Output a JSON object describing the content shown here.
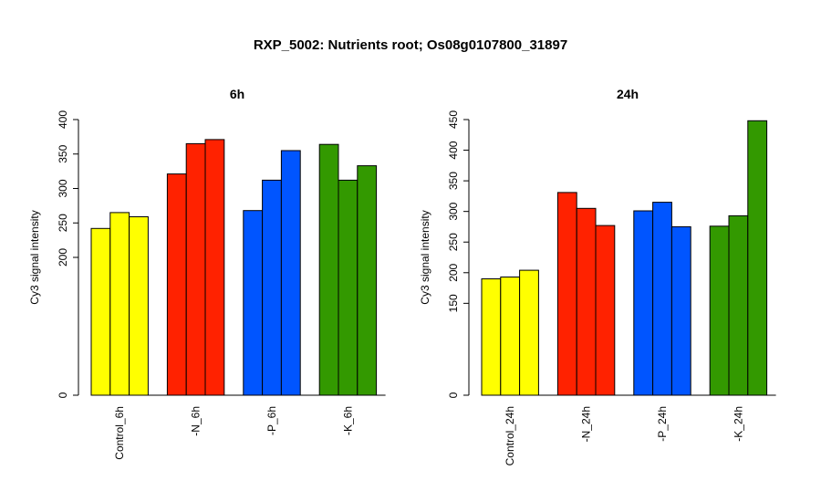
{
  "figure": {
    "title": "RXP_5002: Nutrients root; Os08g0107800_31897"
  },
  "chart_data": [
    {
      "type": "bar",
      "title": "6h",
      "ylabel": "Cy3 signal intensity",
      "xlabel": "",
      "categories": [
        "Control_6h",
        "-N_6h",
        "-P_6h",
        "-K_6h"
      ],
      "group_colors": [
        "#ffff00",
        "#ff2200",
        "#0055ff",
        "#339900"
      ],
      "values": [
        [
          242,
          265,
          259
        ],
        [
          321,
          365,
          371
        ],
        [
          268,
          312,
          355
        ],
        [
          364,
          312,
          333
        ]
      ],
      "yticks": [
        0,
        200,
        250,
        300,
        350,
        400
      ],
      "ylim": [
        0,
        400
      ],
      "grid": false,
      "legend": false
    },
    {
      "type": "bar",
      "title": "24h",
      "ylabel": "Cy3 signal intensity",
      "xlabel": "",
      "categories": [
        "Control_24h",
        "-N_24h",
        "-P_24h",
        "-K_24h"
      ],
      "group_colors": [
        "#ffff00",
        "#ff2200",
        "#0055ff",
        "#339900"
      ],
      "values": [
        [
          190,
          193,
          204
        ],
        [
          331,
          305,
          277
        ],
        [
          301,
          315,
          275
        ],
        [
          276,
          293,
          448
        ]
      ],
      "yticks": [
        0,
        150,
        200,
        250,
        300,
        350,
        400,
        450
      ],
      "ylim": [
        0,
        450
      ],
      "grid": false,
      "legend": false
    }
  ]
}
